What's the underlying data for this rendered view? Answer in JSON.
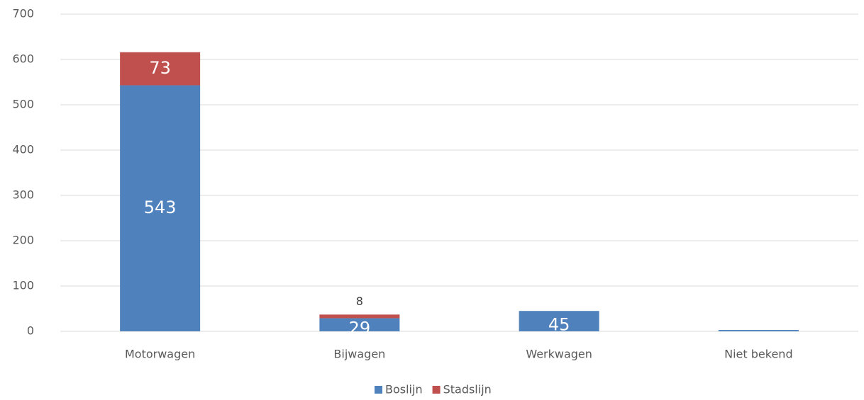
{
  "chart_data": {
    "type": "stacked_bar",
    "categories": [
      "Motorwagen",
      "Bijwagen",
      "Werkwagen",
      "Niet bekend"
    ],
    "series": [
      {
        "name": "Boslijn",
        "color": "#4f81bd",
        "values": [
          543,
          29,
          45,
          3
        ],
        "value_labels": [
          "543",
          "29",
          "45",
          null
        ]
      },
      {
        "name": "Stadslijn",
        "color": "#c0504d",
        "values": [
          73,
          8,
          null,
          null
        ]
      }
    ],
    "ylim": [
      0,
      700
    ],
    "yticks": [
      0,
      100,
      200,
      300,
      400,
      500,
      600,
      700
    ],
    "grid": true,
    "legend": "bottom"
  }
}
